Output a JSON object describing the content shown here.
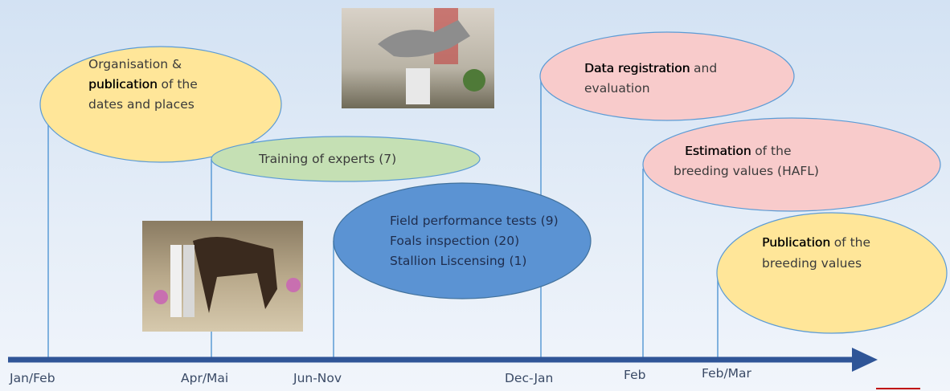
{
  "timeline": {
    "labels": [
      "Jan/Feb",
      "Apr/Mai",
      "Jun-Nov",
      "Dec-Jan",
      "Feb",
      "Feb/Mar"
    ]
  },
  "events": [
    {
      "lines": [
        [
          {
            "text": "Organisation &"
          }
        ],
        [
          {
            "text": "publication",
            "bold": true
          },
          {
            "text": "of the"
          }
        ],
        [
          {
            "text": "dates and places"
          }
        ]
      ]
    },
    {
      "lines": [
        [
          {
            "text": "Training of experts (7)"
          }
        ]
      ]
    },
    {
      "lines": [
        [
          {
            "text": "Field performance tests (9)"
          }
        ],
        [
          {
            "text": "Foals inspection (20)"
          }
        ],
        [
          {
            "text": "Stallion Liscensing (1)"
          }
        ]
      ]
    },
    {
      "lines": [
        [
          {
            "text": "Data registration",
            "bold": true
          },
          {
            "text": "and"
          }
        ],
        [
          {
            "text": "evaluation"
          }
        ]
      ]
    },
    {
      "lines": [
        [
          {
            "text": "Estimation",
            "bold": true
          },
          {
            "text": "of the"
          }
        ],
        [
          {
            "text": "breeding values (HAFL)"
          }
        ]
      ]
    },
    {
      "lines": [
        [
          {
            "text": "Publication",
            "bold": true
          },
          {
            "text": "of the"
          }
        ],
        [
          {
            "text": "breeding values"
          }
        ]
      ]
    }
  ]
}
